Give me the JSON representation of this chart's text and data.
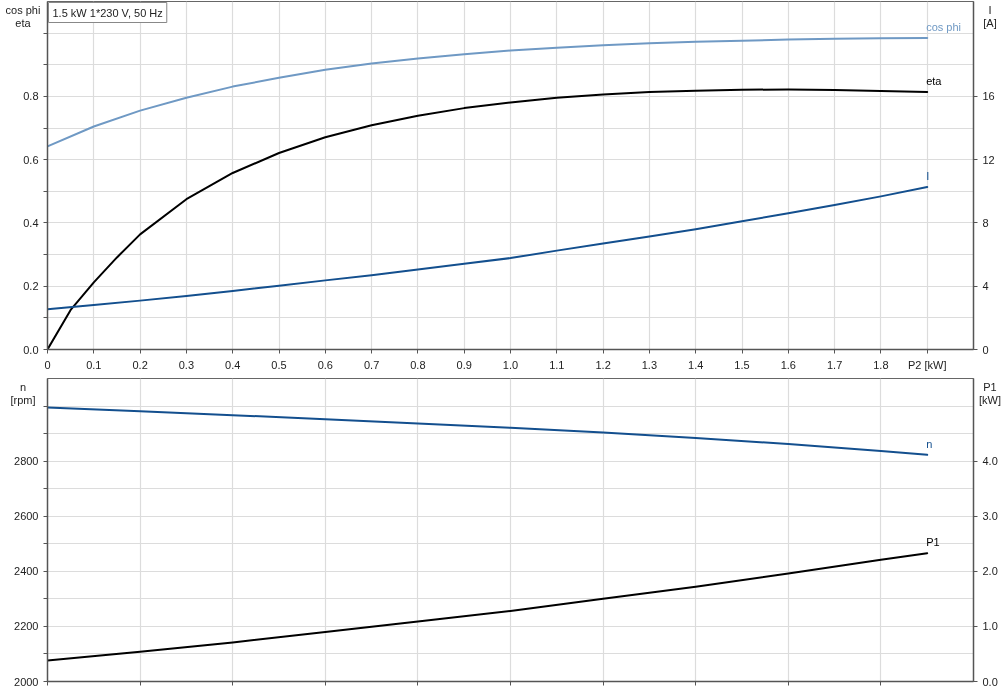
{
  "chart_data": [
    {
      "type": "line",
      "title": "1.5 kW 1*230 V, 50 Hz",
      "ylabel": "cos phi\neta",
      "y2label": "I\n[A]",
      "x": [
        0,
        0.1,
        0.2,
        0.3,
        0.4,
        0.5,
        0.6,
        0.7,
        0.8,
        0.9,
        1.0,
        1.1,
        1.2,
        1.3,
        1.4,
        1.5,
        1.6,
        1.7,
        1.8,
        1.9
      ],
      "xlim": [
        0,
        2.0
      ],
      "xticks": [
        0,
        0.1,
        0.2,
        0.3,
        0.4,
        0.5,
        0.6,
        0.7,
        0.8,
        0.9,
        {
          "value": 1,
          "label": "1.0"
        },
        1.1,
        1.2,
        1.3,
        1.4,
        1.5,
        1.6,
        1.7,
        1.8,
        {
          "value": 1.9,
          "label": "P2 [kW]"
        }
      ],
      "ylim": [
        0,
        1.1
      ],
      "yticks": [
        {
          "value": 0,
          "label": "0.0"
        },
        {
          "value": 0.1,
          "label": null
        },
        0.2,
        {
          "value": 0.3,
          "label": null
        },
        0.4,
        {
          "value": 0.5,
          "label": null
        },
        0.6,
        {
          "value": 0.7,
          "label": null
        },
        0.8,
        {
          "value": 0.9,
          "label": null
        },
        {
          "value": 1.0,
          "label": null
        }
      ],
      "y2lim": [
        0,
        22
      ],
      "y2ticks": [
        0,
        4,
        8,
        12,
        16
      ],
      "grid": true,
      "series": [
        {
          "name": "cos phi",
          "color": "#6f99c4",
          "values": [
            0.642,
            0.705,
            0.755,
            0.796,
            0.831,
            0.859,
            0.884,
            0.904,
            0.92,
            0.933,
            0.945,
            0.954,
            0.962,
            0.968,
            0.973,
            0.976,
            0.98,
            0.982,
            0.984,
            0.985
          ]
        },
        {
          "name": "eta",
          "color": "#000000",
          "x": [
            0,
            0.05,
            0.1,
            0.15,
            0.2,
            0.3,
            0.4,
            0.5,
            0.6,
            0.7,
            0.8,
            0.9,
            1.0,
            1.1,
            1.2,
            1.3,
            1.4,
            1.5,
            1.6,
            1.7,
            1.8,
            1.9
          ],
          "values": [
            0,
            0.125,
            0.212,
            0.291,
            0.364,
            0.475,
            0.558,
            0.621,
            0.671,
            0.709,
            0.739,
            0.763,
            0.781,
            0.796,
            0.806,
            0.814,
            0.818,
            0.821,
            0.822,
            0.82,
            0.817,
            0.814
          ]
        },
        {
          "name": "I",
          "color": "#134f8e",
          "axis": "y2",
          "values": [
            2.54,
            2.82,
            3.09,
            3.38,
            3.7,
            4.03,
            4.37,
            4.7,
            5.06,
            5.42,
            5.78,
            6.25,
            6.7,
            7.14,
            7.6,
            8.11,
            8.61,
            9.13,
            9.68,
            10.27
          ]
        }
      ]
    },
    {
      "type": "line",
      "ylabel": "n\n[rpm]",
      "y2label": "P1\n[kW]",
      "x": [
        0,
        0.2,
        0.4,
        0.6,
        0.8,
        1.0,
        1.2,
        1.4,
        1.6,
        1.8,
        1.9
      ],
      "xlim": [
        0,
        2.0
      ],
      "xticks": [
        0,
        0.2,
        0.4,
        0.6,
        0.8,
        1.0,
        1.2,
        1.4,
        1.6,
        1.8
      ],
      "tick_labels": "y",
      "ylim": [
        2000,
        3100
      ],
      "yticks": [
        2000,
        {
          "value": 2100,
          "label": null
        },
        2200,
        {
          "value": 2300,
          "label": null
        },
        2400,
        {
          "value": 2500,
          "label": null
        },
        2600,
        {
          "value": 2700,
          "label": null
        },
        2800,
        {
          "value": 2900,
          "label": null
        },
        {
          "value": 3000,
          "label": null
        }
      ],
      "y2lim": [
        0,
        5.5
      ],
      "y2ticks": [
        {
          "value": 0,
          "label": "0.0"
        },
        {
          "value": 1,
          "label": "1.0"
        },
        {
          "value": 2,
          "label": "2.0"
        },
        {
          "value": 3,
          "label": "3.0"
        },
        {
          "value": 4,
          "label": "4.0"
        }
      ],
      "grid": true,
      "series": [
        {
          "name": "n",
          "color": "#134f8e",
          "values": [
            2995,
            2981,
            2967,
            2952,
            2937,
            2921,
            2904,
            2884,
            2862,
            2837,
            2823
          ]
        },
        {
          "name": "P1",
          "color": "#000000",
          "axis": "y2",
          "values": [
            0.38,
            0.54,
            0.71,
            0.9,
            1.09,
            1.28,
            1.5,
            1.72,
            1.96,
            2.21,
            2.33
          ]
        }
      ]
    }
  ]
}
